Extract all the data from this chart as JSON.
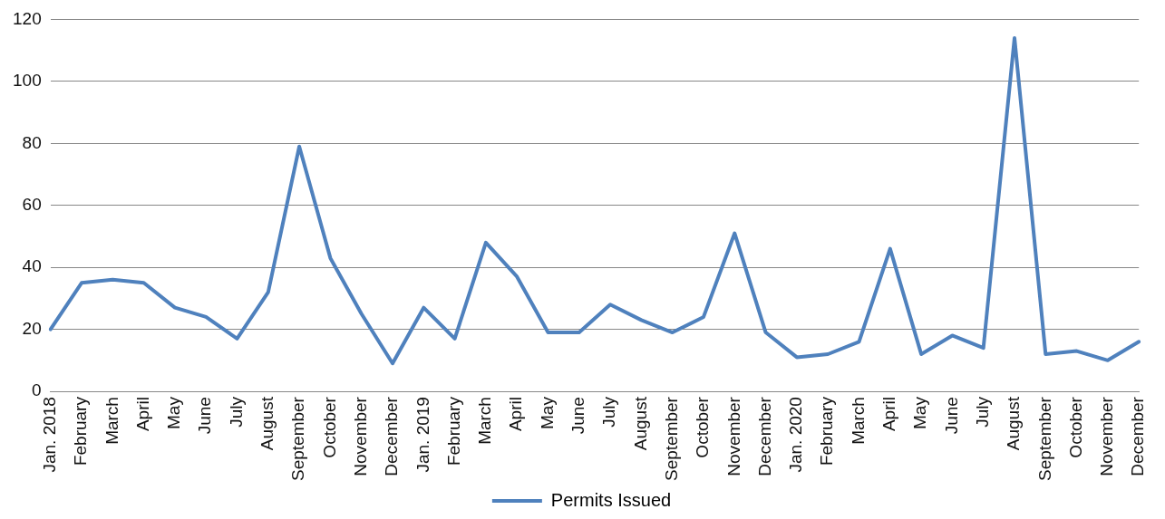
{
  "chart_data": {
    "type": "line",
    "categories": [
      "Jan. 2018",
      "February",
      "March",
      "April",
      "May",
      "June",
      "July",
      "August",
      "September",
      "October",
      "November",
      "December",
      "Jan. 2019",
      "February",
      "March",
      "April",
      "May",
      "June",
      "July",
      "August",
      "September",
      "October",
      "November",
      "December",
      "Jan. 2020",
      "February",
      "March",
      "April",
      "May",
      "June",
      "July",
      "August",
      "September",
      "October",
      "November",
      "December"
    ],
    "series": [
      {
        "name": "Permits Issued",
        "color": "#4f81bd",
        "values": [
          20,
          35,
          36,
          35,
          27,
          24,
          17,
          32,
          79,
          43,
          25,
          9,
          27,
          17,
          48,
          37,
          19,
          19,
          28,
          23,
          19,
          24,
          51,
          19,
          11,
          12,
          16,
          46,
          12,
          18,
          14,
          114,
          12,
          13,
          10,
          16
        ]
      }
    ],
    "ylim": [
      0,
      120
    ],
    "yticks": [
      0,
      20,
      40,
      60,
      80,
      100,
      120
    ],
    "grid": "y",
    "legend": "bottom",
    "marker": "none",
    "line_style": "solid"
  }
}
